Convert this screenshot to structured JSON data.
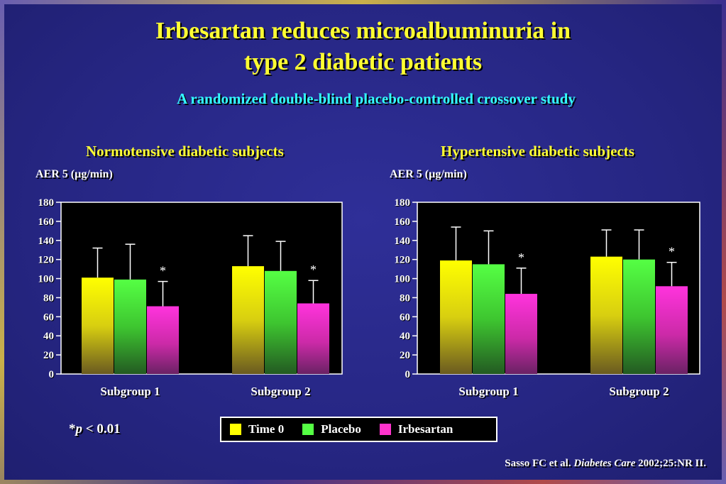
{
  "slide": {
    "title_line1": "Irbesartan reduces microalbuminuria in",
    "title_line2": "type 2 diabetic patients",
    "subtitle": "A randomized double-blind placebo-controlled crossover study",
    "p_note_star": "*",
    "p_note_p": "p",
    "p_note_rest": " < 0.01",
    "citation_authors": "Sasso FC et al. ",
    "citation_journal": "Diabetes Care",
    "citation_rest": " 2002;25:NR II."
  },
  "legend": [
    {
      "label": "Time 0",
      "color": "#ffff00"
    },
    {
      "label": "Placebo",
      "color": "#55ff44"
    },
    {
      "label": "Irbesartan",
      "color": "#ff33cc"
    }
  ],
  "chart_data": [
    {
      "type": "bar",
      "title": "Normotensive diabetic subjects",
      "ylabel": "AER 5 (µg/min)",
      "ylim": [
        0,
        180
      ],
      "yticks": [
        0,
        20,
        40,
        60,
        80,
        100,
        120,
        140,
        160,
        180
      ],
      "categories": [
        "Subgroup 1",
        "Subgroup 2"
      ],
      "series": [
        {
          "name": "Time 0",
          "values": [
            101,
            113
          ],
          "error_upper": [
            132,
            145
          ],
          "significant": [
            false,
            false
          ]
        },
        {
          "name": "Placebo",
          "values": [
            99,
            108
          ],
          "error_upper": [
            136,
            139
          ],
          "significant": [
            false,
            false
          ]
        },
        {
          "name": "Irbesartan",
          "values": [
            71,
            74
          ],
          "error_upper": [
            97,
            98
          ],
          "significant": [
            true,
            true
          ]
        }
      ],
      "significance_marker": "*"
    },
    {
      "type": "bar",
      "title": "Hypertensive diabetic subjects",
      "ylabel": "AER 5 (µg/min)",
      "ylim": [
        0,
        180
      ],
      "yticks": [
        0,
        20,
        40,
        60,
        80,
        100,
        120,
        140,
        160,
        180
      ],
      "categories": [
        "Subgroup 1",
        "Subgroup 2"
      ],
      "series": [
        {
          "name": "Time 0",
          "values": [
            119,
            123
          ],
          "error_upper": [
            154,
            151
          ],
          "significant": [
            false,
            false
          ]
        },
        {
          "name": "Placebo",
          "values": [
            115,
            120
          ],
          "error_upper": [
            150,
            151
          ],
          "significant": [
            false,
            false
          ]
        },
        {
          "name": "Irbesartan",
          "values": [
            84,
            92
          ],
          "error_upper": [
            111,
            117
          ],
          "significant": [
            true,
            true
          ]
        }
      ],
      "significance_marker": "*"
    }
  ]
}
